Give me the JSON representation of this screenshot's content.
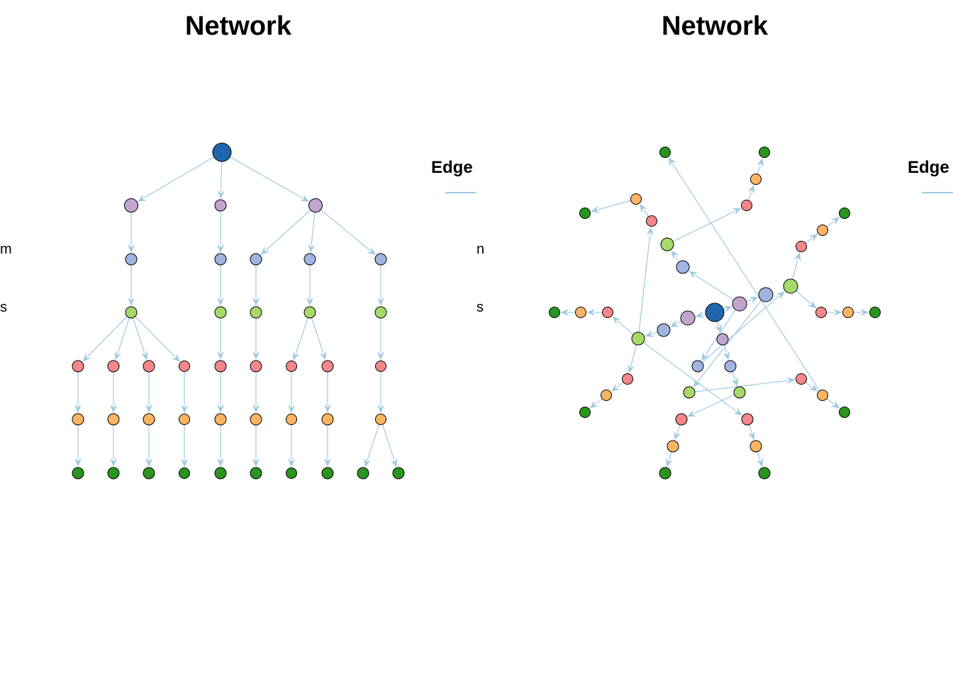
{
  "colors": {
    "edge": "#9ecae1",
    "level0": "#2166ac",
    "level1": "#c2a5cf",
    "level2": "#9fb4e0",
    "level3": "#a6d96a",
    "level4": "#f4878a",
    "level5": "#fdb462",
    "level6": "#2b9420"
  },
  "panels": [
    {
      "title": "Network",
      "legend_title": "Edge",
      "clipped_label_1": "m",
      "clipped_label_2": "s"
    },
    {
      "title": "Network",
      "legend_title": "Edge",
      "clipped_label_1": "n",
      "clipped_label_2": "s"
    }
  ],
  "graph": {
    "nodes": [
      {
        "id": "n0",
        "level": 0,
        "children": [
          "n1",
          "n2",
          "n3"
        ]
      },
      {
        "id": "n1",
        "level": 1,
        "children": [
          "n4"
        ]
      },
      {
        "id": "n2",
        "level": 1,
        "children": [
          "n5"
        ]
      },
      {
        "id": "n3",
        "level": 1,
        "children": [
          "n6",
          "n7",
          "n8"
        ]
      },
      {
        "id": "n4",
        "level": 2,
        "children": [
          "n9"
        ]
      },
      {
        "id": "n5",
        "level": 2,
        "children": [
          "n10"
        ]
      },
      {
        "id": "n6",
        "level": 2,
        "children": [
          "n11"
        ]
      },
      {
        "id": "n7",
        "level": 2,
        "children": [
          "n12"
        ]
      },
      {
        "id": "n8",
        "level": 2,
        "children": [
          "n13"
        ]
      },
      {
        "id": "n9",
        "level": 3,
        "children": [
          "n14",
          "n15",
          "n16",
          "n17"
        ]
      },
      {
        "id": "n10",
        "level": 3,
        "children": [
          "n18"
        ]
      },
      {
        "id": "n11",
        "level": 3,
        "children": [
          "n19"
        ]
      },
      {
        "id": "n12",
        "level": 3,
        "children": [
          "n20",
          "n21"
        ]
      },
      {
        "id": "n13",
        "level": 3,
        "children": [
          "n22"
        ]
      },
      {
        "id": "n14",
        "level": 4,
        "children": [
          "n23"
        ]
      },
      {
        "id": "n15",
        "level": 4,
        "children": [
          "n24"
        ]
      },
      {
        "id": "n16",
        "level": 4,
        "children": [
          "n25"
        ]
      },
      {
        "id": "n17",
        "level": 4,
        "children": [
          "n26"
        ]
      },
      {
        "id": "n18",
        "level": 4,
        "children": [
          "n27"
        ]
      },
      {
        "id": "n19",
        "level": 4,
        "children": [
          "n28"
        ]
      },
      {
        "id": "n20",
        "level": 4,
        "children": [
          "n29"
        ]
      },
      {
        "id": "n21",
        "level": 4,
        "children": [
          "n30"
        ]
      },
      {
        "id": "n22",
        "level": 4,
        "children": [
          "n31"
        ]
      },
      {
        "id": "n23",
        "level": 5,
        "children": [
          "n32"
        ]
      },
      {
        "id": "n24",
        "level": 5,
        "children": [
          "n33"
        ]
      },
      {
        "id": "n25",
        "level": 5,
        "children": [
          "n34"
        ]
      },
      {
        "id": "n26",
        "level": 5,
        "children": [
          "n35"
        ]
      },
      {
        "id": "n27",
        "level": 5,
        "children": [
          "n36"
        ]
      },
      {
        "id": "n28",
        "level": 5,
        "children": [
          "n37"
        ]
      },
      {
        "id": "n29",
        "level": 5,
        "children": [
          "n38"
        ]
      },
      {
        "id": "n30",
        "level": 5,
        "children": [
          "n39"
        ]
      },
      {
        "id": "n31",
        "level": 5,
        "children": [
          "n40",
          "n41"
        ]
      },
      {
        "id": "n32",
        "level": 6,
        "children": []
      },
      {
        "id": "n33",
        "level": 6,
        "children": []
      },
      {
        "id": "n34",
        "level": 6,
        "children": []
      },
      {
        "id": "n35",
        "level": 6,
        "children": []
      },
      {
        "id": "n36",
        "level": 6,
        "children": []
      },
      {
        "id": "n37",
        "level": 6,
        "children": []
      },
      {
        "id": "n38",
        "level": 6,
        "children": []
      },
      {
        "id": "n39",
        "level": 6,
        "children": []
      },
      {
        "id": "n40",
        "level": 6,
        "children": []
      },
      {
        "id": "n41",
        "level": 6,
        "children": []
      }
    ]
  }
}
